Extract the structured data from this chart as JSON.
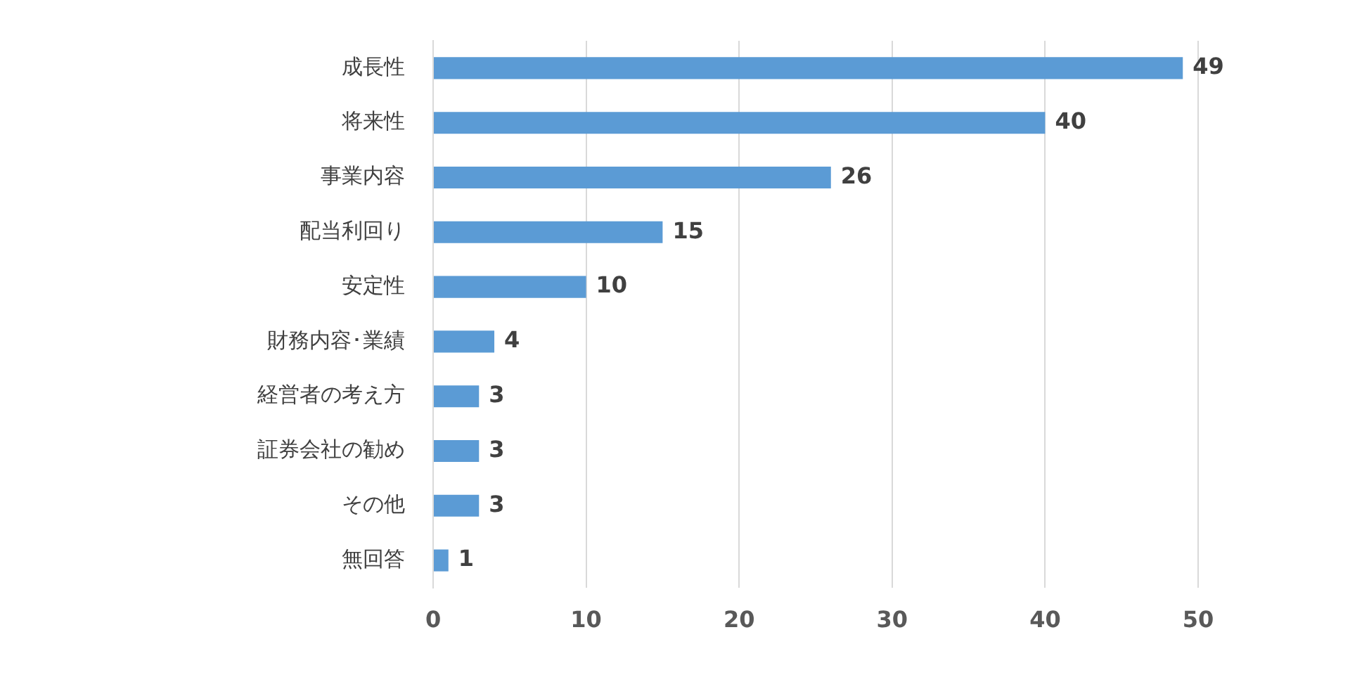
{
  "chart_data": {
    "type": "bar",
    "orientation": "horizontal",
    "categories": [
      "成長性",
      "将来性",
      "事業内容",
      "配当利回り",
      "安定性",
      "財務内容･業績",
      "経営者の考え方",
      "証券会社の勧め",
      "その他",
      "無回答"
    ],
    "values": [
      49,
      40,
      26,
      15,
      10,
      4,
      3,
      3,
      3,
      1
    ],
    "color": "#5b9bd5",
    "xlim": [
      0,
      50
    ],
    "xticks": [
      0,
      10,
      20,
      30,
      40,
      50
    ],
    "grid": "x",
    "legend": false,
    "data_labels": true
  }
}
